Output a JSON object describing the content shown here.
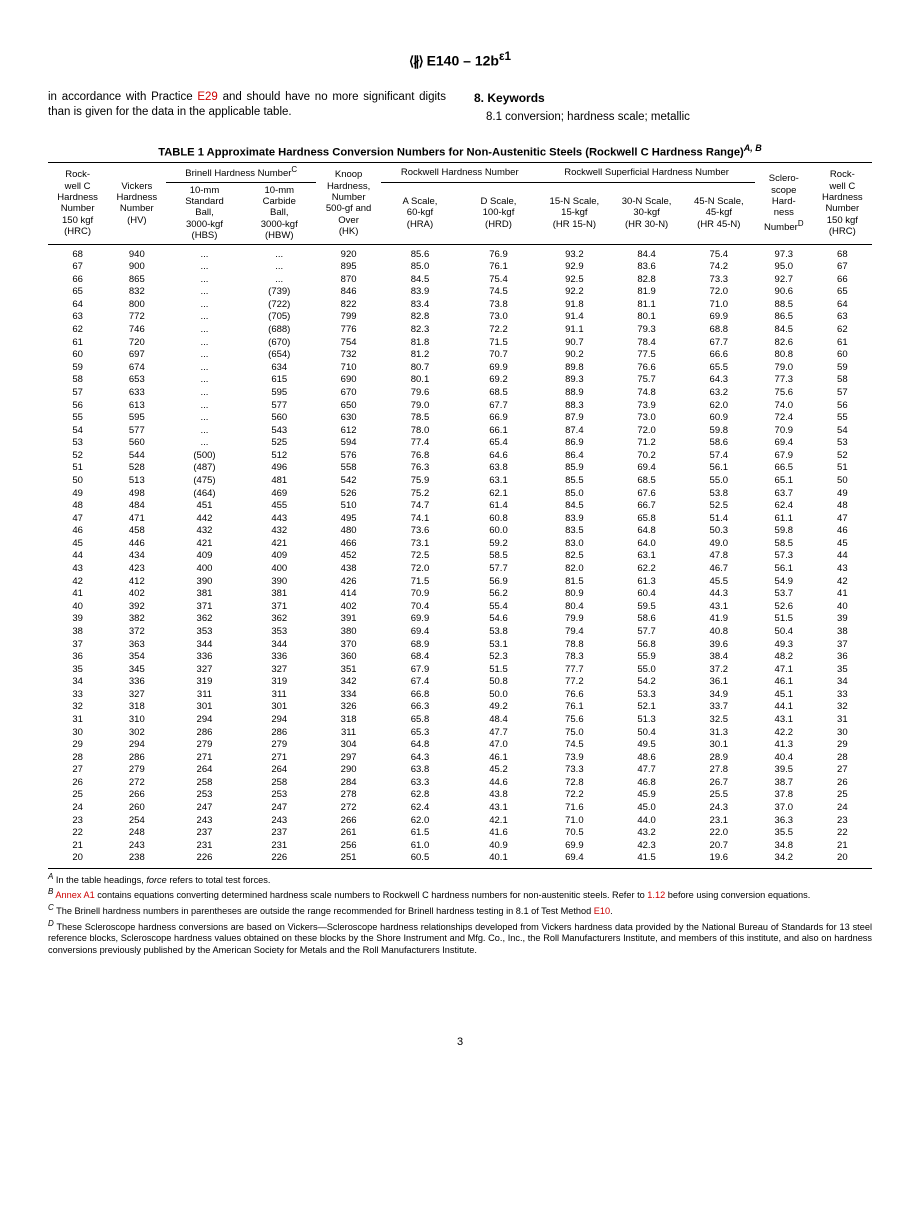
{
  "document": {
    "designation": "E140 – 12b",
    "superscript": "ε1",
    "page_number": "3"
  },
  "intro": {
    "left_text_pre": "in accordance with Practice ",
    "left_link": "E29",
    "left_text_post": " and should have no more significant digits than is given for the data in the applicable table.",
    "section_num": "8.",
    "section_title": "Keywords",
    "subsection": "8.1 conversion; hardness scale; metallic"
  },
  "table": {
    "title": "TABLE 1 Approximate Hardness Conversion Numbers for Non-Austenitic Steels (Rockwell C Hardness Range)",
    "title_sup": "A, B",
    "group_headers": {
      "brinell": "Brinell Hardness Number",
      "brinell_sup": "C",
      "rockwell": "Rockwell Hardness Number",
      "rockwell_sup": "Rockwell Superficial Hardness Number"
    },
    "col_headers": [
      "Rock-\nwell C\nHardness\nNumber\n150 kgf\n(HRC)",
      "Vickers\nHardness\nNumber\n(HV)",
      "10-mm\nStandard\nBall,\n3000-kgf\n(HBS)",
      "10-mm\nCarbide\nBall,\n3000-kgf\n(HBW)",
      "Knoop\nHardness,\nNumber\n500-gf and\nOver\n(HK)",
      "A Scale,\n60-kgf\n(HRA)",
      "D Scale,\n100-kgf\n(HRD)",
      "15-N Scale,\n15-kgf\n(HR 15-N)",
      "30-N Scale,\n30-kgf\n(HR 30-N)",
      "45-N Scale,\n45-kgf\n(HR 45-N)",
      "Sclero-\nscope\nHard-\nness\nNumber",
      "Rock-\nwell C\nHardness\nNumber\n150 kgf\n(HRC)"
    ],
    "sclero_sup": "D",
    "rows": [
      [
        "68",
        "940",
        "...",
        "...",
        "920",
        "85.6",
        "76.9",
        "93.2",
        "84.4",
        "75.4",
        "97.3",
        "68"
      ],
      [
        "67",
        "900",
        "...",
        "...",
        "895",
        "85.0",
        "76.1",
        "92.9",
        "83.6",
        "74.2",
        "95.0",
        "67"
      ],
      [
        "66",
        "865",
        "...",
        "...",
        "870",
        "84.5",
        "75.4",
        "92.5",
        "82.8",
        "73.3",
        "92.7",
        "66"
      ],
      [
        "65",
        "832",
        "...",
        "(739)",
        "846",
        "83.9",
        "74.5",
        "92.2",
        "81.9",
        "72.0",
        "90.6",
        "65"
      ],
      [
        "64",
        "800",
        "...",
        "(722)",
        "822",
        "83.4",
        "73.8",
        "91.8",
        "81.1",
        "71.0",
        "88.5",
        "64"
      ],
      [
        "63",
        "772",
        "...",
        "(705)",
        "799",
        "82.8",
        "73.0",
        "91.4",
        "80.1",
        "69.9",
        "86.5",
        "63"
      ],
      [
        "62",
        "746",
        "...",
        "(688)",
        "776",
        "82.3",
        "72.2",
        "91.1",
        "79.3",
        "68.8",
        "84.5",
        "62"
      ],
      [
        "61",
        "720",
        "...",
        "(670)",
        "754",
        "81.8",
        "71.5",
        "90.7",
        "78.4",
        "67.7",
        "82.6",
        "61"
      ],
      [
        "60",
        "697",
        "...",
        "(654)",
        "732",
        "81.2",
        "70.7",
        "90.2",
        "77.5",
        "66.6",
        "80.8",
        "60"
      ],
      [
        "59",
        "674",
        "...",
        "634",
        "710",
        "80.7",
        "69.9",
        "89.8",
        "76.6",
        "65.5",
        "79.0",
        "59"
      ],
      [
        "58",
        "653",
        "...",
        "615",
        "690",
        "80.1",
        "69.2",
        "89.3",
        "75.7",
        "64.3",
        "77.3",
        "58"
      ],
      [
        "57",
        "633",
        "...",
        "595",
        "670",
        "79.6",
        "68.5",
        "88.9",
        "74.8",
        "63.2",
        "75.6",
        "57"
      ],
      [
        "56",
        "613",
        "...",
        "577",
        "650",
        "79.0",
        "67.7",
        "88.3",
        "73.9",
        "62.0",
        "74.0",
        "56"
      ],
      [
        "55",
        "595",
        "...",
        "560",
        "630",
        "78.5",
        "66.9",
        "87.9",
        "73.0",
        "60.9",
        "72.4",
        "55"
      ],
      [
        "54",
        "577",
        "...",
        "543",
        "612",
        "78.0",
        "66.1",
        "87.4",
        "72.0",
        "59.8",
        "70.9",
        "54"
      ],
      [
        "53",
        "560",
        "...",
        "525",
        "594",
        "77.4",
        "65.4",
        "86.9",
        "71.2",
        "58.6",
        "69.4",
        "53"
      ],
      [
        "52",
        "544",
        "(500)",
        "512",
        "576",
        "76.8",
        "64.6",
        "86.4",
        "70.2",
        "57.4",
        "67.9",
        "52"
      ],
      [
        "51",
        "528",
        "(487)",
        "496",
        "558",
        "76.3",
        "63.8",
        "85.9",
        "69.4",
        "56.1",
        "66.5",
        "51"
      ],
      [
        "50",
        "513",
        "(475)",
        "481",
        "542",
        "75.9",
        "63.1",
        "85.5",
        "68.5",
        "55.0",
        "65.1",
        "50"
      ],
      [
        "49",
        "498",
        "(464)",
        "469",
        "526",
        "75.2",
        "62.1",
        "85.0",
        "67.6",
        "53.8",
        "63.7",
        "49"
      ],
      [
        "48",
        "484",
        "451",
        "455",
        "510",
        "74.7",
        "61.4",
        "84.5",
        "66.7",
        "52.5",
        "62.4",
        "48"
      ],
      [
        "47",
        "471",
        "442",
        "443",
        "495",
        "74.1",
        "60.8",
        "83.9",
        "65.8",
        "51.4",
        "61.1",
        "47"
      ],
      [
        "46",
        "458",
        "432",
        "432",
        "480",
        "73.6",
        "60.0",
        "83.5",
        "64.8",
        "50.3",
        "59.8",
        "46"
      ],
      [
        "45",
        "446",
        "421",
        "421",
        "466",
        "73.1",
        "59.2",
        "83.0",
        "64.0",
        "49.0",
        "58.5",
        "45"
      ],
      [
        "44",
        "434",
        "409",
        "409",
        "452",
        "72.5",
        "58.5",
        "82.5",
        "63.1",
        "47.8",
        "57.3",
        "44"
      ],
      [
        "43",
        "423",
        "400",
        "400",
        "438",
        "72.0",
        "57.7",
        "82.0",
        "62.2",
        "46.7",
        "56.1",
        "43"
      ],
      [
        "42",
        "412",
        "390",
        "390",
        "426",
        "71.5",
        "56.9",
        "81.5",
        "61.3",
        "45.5",
        "54.9",
        "42"
      ],
      [
        "41",
        "402",
        "381",
        "381",
        "414",
        "70.9",
        "56.2",
        "80.9",
        "60.4",
        "44.3",
        "53.7",
        "41"
      ],
      [
        "40",
        "392",
        "371",
        "371",
        "402",
        "70.4",
        "55.4",
        "80.4",
        "59.5",
        "43.1",
        "52.6",
        "40"
      ],
      [
        "39",
        "382",
        "362",
        "362",
        "391",
        "69.9",
        "54.6",
        "79.9",
        "58.6",
        "41.9",
        "51.5",
        "39"
      ],
      [
        "38",
        "372",
        "353",
        "353",
        "380",
        "69.4",
        "53.8",
        "79.4",
        "57.7",
        "40.8",
        "50.4",
        "38"
      ],
      [
        "37",
        "363",
        "344",
        "344",
        "370",
        "68.9",
        "53.1",
        "78.8",
        "56.8",
        "39.6",
        "49.3",
        "37"
      ],
      [
        "36",
        "354",
        "336",
        "336",
        "360",
        "68.4",
        "52.3",
        "78.3",
        "55.9",
        "38.4",
        "48.2",
        "36"
      ],
      [
        "35",
        "345",
        "327",
        "327",
        "351",
        "67.9",
        "51.5",
        "77.7",
        "55.0",
        "37.2",
        "47.1",
        "35"
      ],
      [
        "34",
        "336",
        "319",
        "319",
        "342",
        "67.4",
        "50.8",
        "77.2",
        "54.2",
        "36.1",
        "46.1",
        "34"
      ],
      [
        "33",
        "327",
        "311",
        "311",
        "334",
        "66.8",
        "50.0",
        "76.6",
        "53.3",
        "34.9",
        "45.1",
        "33"
      ],
      [
        "32",
        "318",
        "301",
        "301",
        "326",
        "66.3",
        "49.2",
        "76.1",
        "52.1",
        "33.7",
        "44.1",
        "32"
      ],
      [
        "31",
        "310",
        "294",
        "294",
        "318",
        "65.8",
        "48.4",
        "75.6",
        "51.3",
        "32.5",
        "43.1",
        "31"
      ],
      [
        "30",
        "302",
        "286",
        "286",
        "311",
        "65.3",
        "47.7",
        "75.0",
        "50.4",
        "31.3",
        "42.2",
        "30"
      ],
      [
        "29",
        "294",
        "279",
        "279",
        "304",
        "64.8",
        "47.0",
        "74.5",
        "49.5",
        "30.1",
        "41.3",
        "29"
      ],
      [
        "28",
        "286",
        "271",
        "271",
        "297",
        "64.3",
        "46.1",
        "73.9",
        "48.6",
        "28.9",
        "40.4",
        "28"
      ],
      [
        "27",
        "279",
        "264",
        "264",
        "290",
        "63.8",
        "45.2",
        "73.3",
        "47.7",
        "27.8",
        "39.5",
        "27"
      ],
      [
        "26",
        "272",
        "258",
        "258",
        "284",
        "63.3",
        "44.6",
        "72.8",
        "46.8",
        "26.7",
        "38.7",
        "26"
      ],
      [
        "25",
        "266",
        "253",
        "253",
        "278",
        "62.8",
        "43.8",
        "72.2",
        "45.9",
        "25.5",
        "37.8",
        "25"
      ],
      [
        "24",
        "260",
        "247",
        "247",
        "272",
        "62.4",
        "43.1",
        "71.6",
        "45.0",
        "24.3",
        "37.0",
        "24"
      ],
      [
        "23",
        "254",
        "243",
        "243",
        "266",
        "62.0",
        "42.1",
        "71.0",
        "44.0",
        "23.1",
        "36.3",
        "23"
      ],
      [
        "22",
        "248",
        "237",
        "237",
        "261",
        "61.5",
        "41.6",
        "70.5",
        "43.2",
        "22.0",
        "35.5",
        "22"
      ],
      [
        "21",
        "243",
        "231",
        "231",
        "256",
        "61.0",
        "40.9",
        "69.9",
        "42.3",
        "20.7",
        "34.8",
        "21"
      ],
      [
        "20",
        "238",
        "226",
        "226",
        "251",
        "60.5",
        "40.1",
        "69.4",
        "41.5",
        "19.6",
        "34.2",
        "20"
      ]
    ]
  },
  "footnotes": {
    "a": "In the table headings, force refers to total test forces.",
    "b_pre": "",
    "b_link1": "Annex A1",
    "b_mid": " contains equations converting determined hardness scale numbers to Rockwell C hardness numbers for non-austenitic steels. Refer to ",
    "b_link2": "1.12",
    "b_post": " before using conversion equations.",
    "c_pre": "The Brinell hardness numbers in parentheses are outside the range recommended for Brinell hardness testing in 8.1 of Test Method ",
    "c_link": "E10",
    "c_post": ".",
    "d": "These Scleroscope hardness conversions are based on Vickers—Scleroscope hardness relationships developed from Vickers hardness data provided by the National Bureau of Standards for 13 steel reference blocks, Scleroscope hardness values obtained on these blocks by the Shore Instrument and Mfg. Co., Inc., the Roll Manufacturers Institute, and members of this institute, and also on hardness conversions previously published by the American Society for Metals and the Roll Manufacturers Institute."
  }
}
